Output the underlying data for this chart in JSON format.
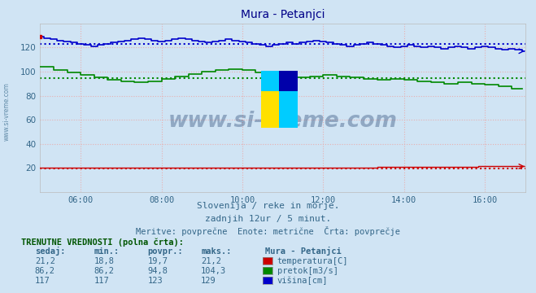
{
  "title": "Mura - Petanjci",
  "background_color": "#d0e4f4",
  "plot_bg_color": "#d0e4f4",
  "xlim": [
    0,
    144
  ],
  "ylim": [
    0,
    140
  ],
  "yticks": [
    20,
    40,
    60,
    80,
    100,
    120
  ],
  "xtick_labels": [
    "06:00",
    "08:00",
    "10:00",
    "12:00",
    "14:00",
    "16:00"
  ],
  "xtick_positions": [
    12,
    36,
    60,
    84,
    108,
    132
  ],
  "grid_color": "#e8b0b0",
  "temperatura_color": "#cc0000",
  "pretok_color": "#008800",
  "visina_color": "#0000cc",
  "avg_temperatura": 19.7,
  "avg_pretok": 94.8,
  "avg_visina": 123,
  "subtitle1": "Slovenija / reke in morje.",
  "subtitle2": "zadnjih 12ur / 5 minut.",
  "subtitle3": "Meritve: povprečne  Enote: metrične  Črta: povprečje",
  "table_header": "TRENUTNE VREDNOSTI (polna črta):",
  "col_headers": [
    "sedaj:",
    "min.:",
    "povpr.:",
    "maks.:"
  ],
  "row1": [
    "21,2",
    "18,8",
    "19,7",
    "21,2"
  ],
  "row2": [
    "86,2",
    "86,2",
    "94,8",
    "104,3"
  ],
  "row3": [
    "117",
    "117",
    "123",
    "129"
  ],
  "legend_labels": [
    "temperatura[C]",
    "pretok[m3/s]",
    "višina[cm]"
  ],
  "legend_colors": [
    "#cc0000",
    "#008800",
    "#0000cc"
  ],
  "station_label": "Mura - Petanjci",
  "watermark": "www.si-vreme.com",
  "watermark_color": "#1a3a6a",
  "watermark_alpha": 0.35,
  "side_text": "www.si-vreme.com",
  "side_text_color": "#336688"
}
